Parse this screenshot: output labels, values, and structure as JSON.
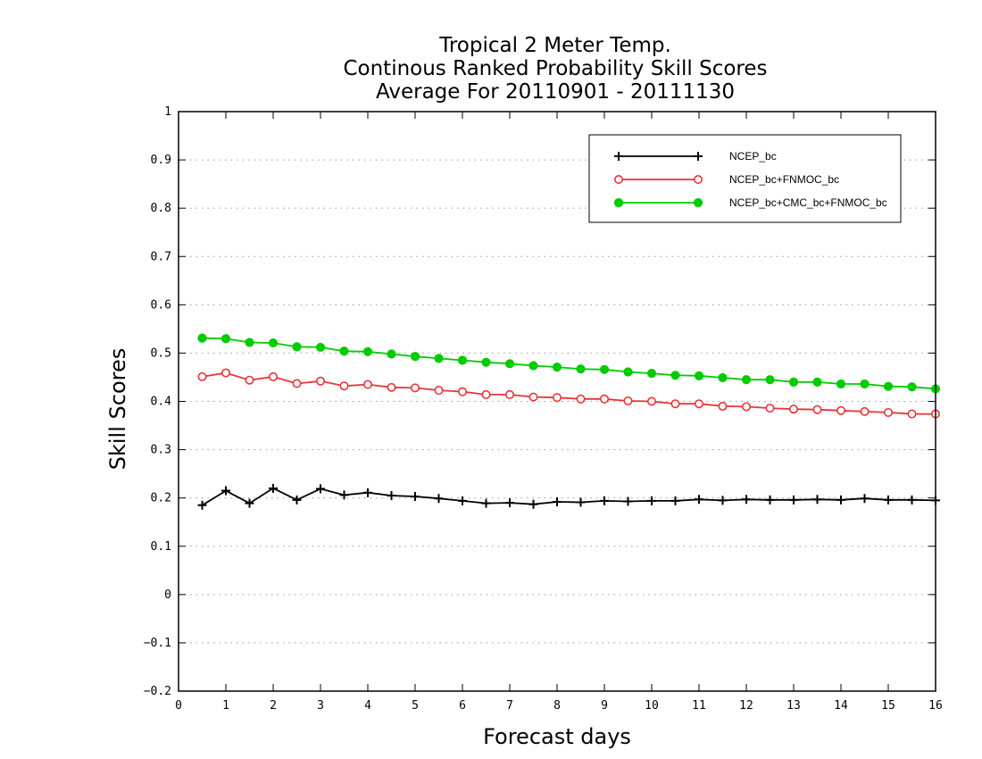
{
  "chart_data": {
    "type": "line",
    "title_lines": [
      "Tropical 2 Meter Temp.",
      "Continous Ranked Probability Skill Scores",
      "Average For 20110901 - 20111130"
    ],
    "xlabel": "Forecast days",
    "ylabel": "Skill Scores",
    "xlim": [
      0,
      16
    ],
    "ylim": [
      -0.2,
      1
    ],
    "x_ticks": [
      "0",
      "1",
      "2",
      "3",
      "4",
      "5",
      "6",
      "7",
      "8",
      "9",
      "10",
      "11",
      "12",
      "13",
      "14",
      "15",
      "16"
    ],
    "y_ticks": [
      "-0.2",
      "-0.1",
      "0",
      "0.1",
      "0.2",
      "0.3",
      "0.4",
      "0.5",
      "0.6",
      "0.7",
      "0.8",
      "0.9",
      "1"
    ],
    "grid": "horizontal-dotted",
    "legend_position": "top-right",
    "x": [
      0.5,
      1,
      1.5,
      2,
      2.5,
      3,
      3.5,
      4,
      4.5,
      5,
      5.5,
      6,
      6.5,
      7,
      7.5,
      8,
      8.5,
      9,
      9.5,
      10,
      10.5,
      11,
      11.5,
      12,
      12.5,
      13,
      13.5,
      14,
      14.5,
      15,
      15.5,
      16
    ],
    "series": [
      {
        "name": "NCEP_bc",
        "color": "#000000",
        "marker": "plus",
        "values": [
          0.185,
          0.215,
          0.189,
          0.22,
          0.196,
          0.219,
          0.206,
          0.211,
          0.205,
          0.203,
          0.199,
          0.194,
          0.189,
          0.19,
          0.187,
          0.192,
          0.191,
          0.194,
          0.193,
          0.194,
          0.194,
          0.197,
          0.195,
          0.197,
          0.196,
          0.196,
          0.197,
          0.196,
          0.199,
          0.196,
          0.196,
          0.195
        ]
      },
      {
        "name": "NCEP_bc+FNMOC_bc",
        "color": "#e8333a",
        "marker": "open-circle",
        "values": [
          0.451,
          0.459,
          0.444,
          0.451,
          0.437,
          0.442,
          0.432,
          0.435,
          0.429,
          0.428,
          0.423,
          0.42,
          0.414,
          0.414,
          0.409,
          0.408,
          0.405,
          0.405,
          0.401,
          0.4,
          0.395,
          0.395,
          0.39,
          0.389,
          0.386,
          0.384,
          0.383,
          0.381,
          0.379,
          0.377,
          0.374,
          0.374
        ]
      },
      {
        "name": "NCEP_bc+CMC_bc+FNMOC_bc",
        "color": "#00cc00",
        "marker": "filled-circle",
        "values": [
          0.531,
          0.53,
          0.522,
          0.521,
          0.513,
          0.512,
          0.504,
          0.503,
          0.498,
          0.493,
          0.489,
          0.485,
          0.481,
          0.478,
          0.474,
          0.471,
          0.467,
          0.466,
          0.461,
          0.458,
          0.454,
          0.453,
          0.449,
          0.445,
          0.445,
          0.44,
          0.44,
          0.436,
          0.436,
          0.431,
          0.43,
          0.426
        ]
      }
    ]
  }
}
